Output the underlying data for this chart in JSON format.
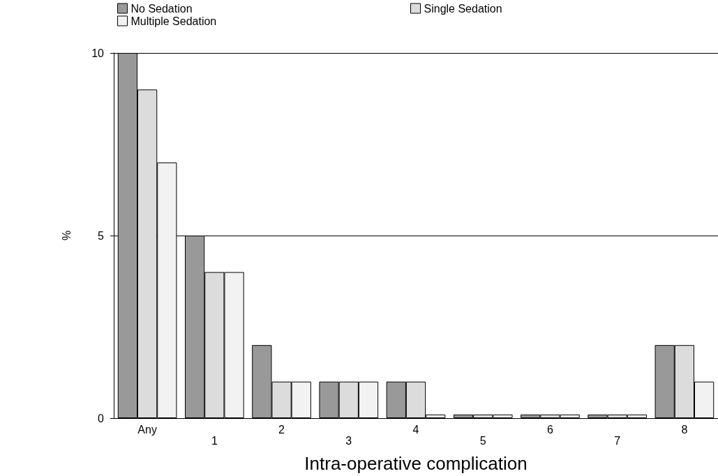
{
  "chart_data": {
    "type": "bar",
    "xlabel": "Intra-operative complication",
    "ylabel": "%",
    "categories": [
      "Any",
      "1",
      "2",
      "3",
      "4",
      "5",
      "6",
      "7",
      "8"
    ],
    "series": [
      {
        "name": "No Sedation",
        "color": "#999999",
        "values": [
          10,
          5,
          2,
          1,
          1,
          0.1,
          0.1,
          0.1,
          2
        ]
      },
      {
        "name": "Single Sedation",
        "color": "#dcdcdc",
        "values": [
          9,
          4,
          1,
          1,
          1,
          0.1,
          0.1,
          0.1,
          2
        ]
      },
      {
        "name": "Multiple Sedation",
        "color": "#f2f2f2",
        "values": [
          7,
          4,
          1,
          1,
          0.1,
          0.1,
          0.1,
          0.1,
          1
        ]
      }
    ],
    "ylim": [
      0,
      10
    ],
    "yticks": [
      0,
      5,
      10
    ],
    "grid": "y",
    "legend": "top left"
  }
}
